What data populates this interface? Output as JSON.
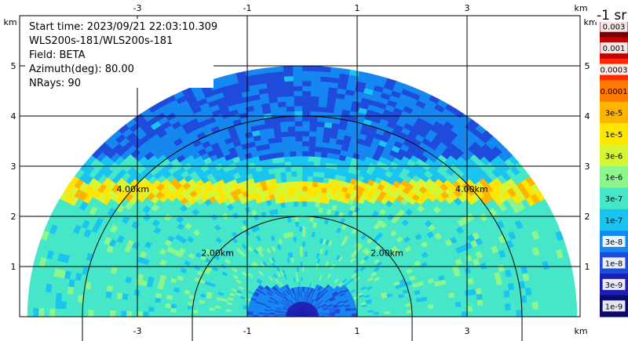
{
  "chart_data": {
    "type": "heatmap",
    "subtype": "lidar-rhi-sector",
    "info_lines": [
      "Start time: 2023/09/21 22:03:10.309",
      "WLS200s-181/WLS200s-181",
      "Field: BETA",
      "Azimuth(deg): 80.00",
      "NRays: 90"
    ],
    "x_unit": "km",
    "y_unit": "km",
    "xlim": [
      -5.5,
      5.5
    ],
    "ylim": [
      0,
      6
    ],
    "x_ticks": [
      -3,
      -1,
      1,
      3
    ],
    "y_ticks": [
      1,
      2,
      3,
      4,
      5
    ],
    "grid": true,
    "range_rings": [
      {
        "radius_km": 2,
        "label": "2.00km"
      },
      {
        "radius_km": 4,
        "label": "4.00km"
      }
    ],
    "max_range_km": 5.0,
    "colorbar": {
      "unit_label": "-1 sr",
      "levels": [
        "0.003",
        "0.001",
        "0.0003",
        "0.0001",
        "3e-5",
        "1e-5",
        "3e-6",
        "1e-6",
        "3e-7",
        "1e-7",
        "3e-8",
        "1e-8",
        "3e-9",
        "1e-9"
      ],
      "colors": [
        "#7a0000",
        "#c40000",
        "#ff2a00",
        "#ff7a00",
        "#ffb400",
        "#ffe600",
        "#d6f533",
        "#8cf58c",
        "#46e6c8",
        "#19c4f0",
        "#1487f0",
        "#1e4bdc",
        "#1e1eb4",
        "#0a0a6e"
      ]
    },
    "profile": {
      "background_level": "1e-7",
      "boundary_layer_level": "3e-7",
      "boundary_layer_top_km": 2.55,
      "peak_level": "0.0001",
      "upper_level": "1e-8",
      "near_field_level": "1e-8"
    }
  }
}
